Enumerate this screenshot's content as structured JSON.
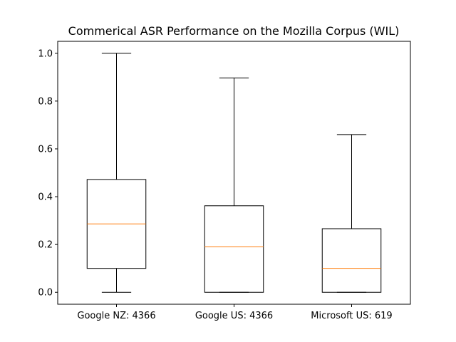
{
  "chart_data": {
    "type": "box",
    "title": "Commerical ASR Performance on the Mozilla Corpus (WIL)",
    "xlabel": "",
    "ylabel": "",
    "ylim": [
      -0.05,
      1.05
    ],
    "yticks": [
      "0.0",
      "0.2",
      "0.4",
      "0.6",
      "0.8",
      "1.0"
    ],
    "grid": false,
    "categories": [
      "Google NZ: 4366",
      "Google US: 4366",
      "Microsoft US: 619"
    ],
    "boxes": [
      {
        "whisker_low": 0.0,
        "q1": 0.1,
        "median": 0.286,
        "q3": 0.472,
        "whisker_high": 1.0
      },
      {
        "whisker_low": 0.0,
        "q1": 0.0,
        "median": 0.19,
        "q3": 0.362,
        "whisker_high": 0.897
      },
      {
        "whisker_low": 0.0,
        "q1": 0.0,
        "median": 0.1,
        "q3": 0.266,
        "whisker_high": 0.66
      }
    ],
    "colors": {
      "box": "#000000",
      "median": "#ff7f0e",
      "axes": "#000000"
    }
  }
}
